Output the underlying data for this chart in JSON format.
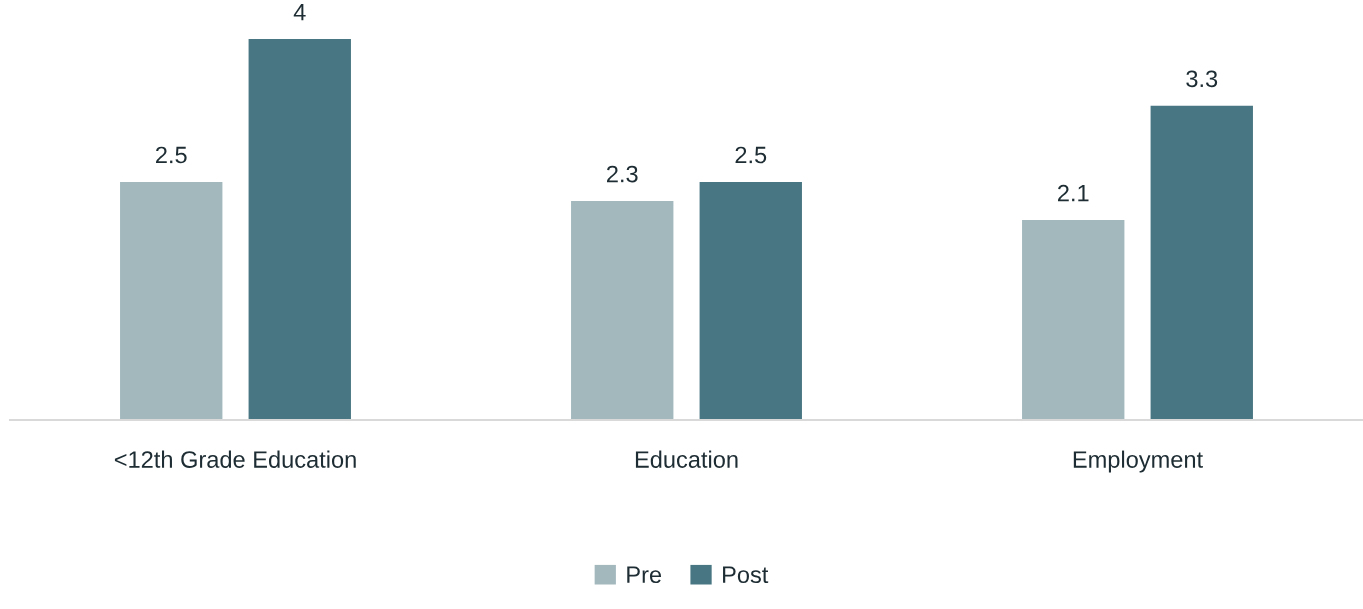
{
  "chart_data": {
    "type": "bar",
    "categories": [
      "<12th Grade Education",
      "Education",
      "Employment"
    ],
    "series": [
      {
        "name": "Pre",
        "color": "#a3b8bd",
        "values": [
          2.5,
          2.3,
          2.1
        ]
      },
      {
        "name": "Post",
        "color": "#487682",
        "values": [
          4,
          2.5,
          3.3
        ]
      }
    ],
    "data_labels": true,
    "grid": false,
    "legend": "bottom"
  }
}
